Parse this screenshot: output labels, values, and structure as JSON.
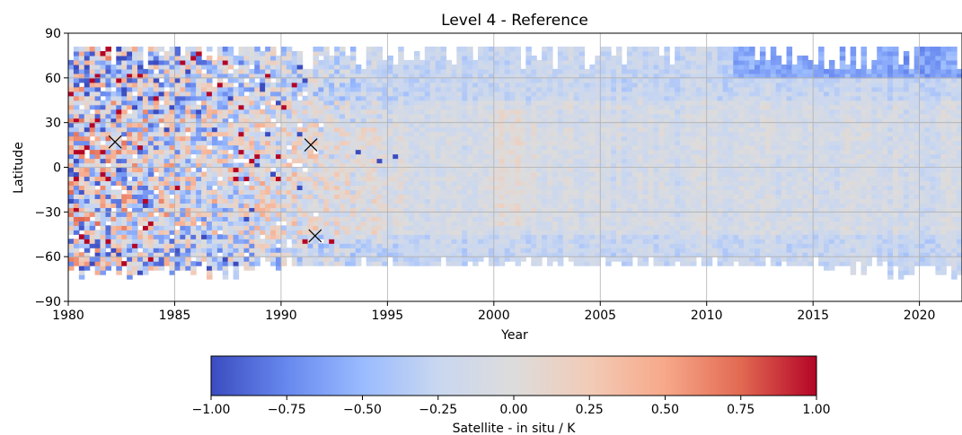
{
  "chart_data": {
    "type": "heatmap",
    "title": "Level 4 - Reference",
    "xlabel": "Year",
    "ylabel": "Latitude",
    "xlim": [
      1980,
      2022
    ],
    "ylim": [
      -90,
      90
    ],
    "xticks": [
      1980,
      1985,
      1990,
      1995,
      2000,
      2005,
      2010,
      2015,
      2020
    ],
    "xtick_labels": [
      "1980",
      "1985",
      "1990",
      "1995",
      "2000",
      "2005",
      "2010",
      "2015",
      "2020"
    ],
    "yticks": [
      -90,
      -60,
      -30,
      0,
      30,
      60,
      90
    ],
    "ytick_labels": [
      "−90",
      "−60",
      "−30",
      "0",
      "30",
      "60",
      "90"
    ],
    "grid": true,
    "colormap": "coolwarm",
    "colorbar": {
      "label": "Satellite - in situ / K",
      "vmin": -1.0,
      "vmax": 1.0,
      "ticks": [
        -1.0,
        -0.75,
        -0.5,
        -0.25,
        0.0,
        0.25,
        0.5,
        0.75,
        1.0
      ],
      "tick_labels": [
        "−1.00",
        "−0.75",
        "−0.50",
        "−0.25",
        "0.00",
        "0.25",
        "0.50",
        "0.75",
        "1.00"
      ],
      "colors": [
        "#3b4cc0",
        "#6788ee",
        "#9abbff",
        "#c9d7f0",
        "#dddcdc",
        "#f2cbb7",
        "#f7a889",
        "#e26952",
        "#b40426"
      ]
    },
    "coverage": {
      "north_edge_deg": 80,
      "south_edge_deg": -65
    },
    "highlights": [
      {
        "name": "x-marker",
        "x": 1982.2,
        "y": 17
      },
      {
        "name": "x-marker",
        "x": 1991.4,
        "y": 15
      },
      {
        "name": "x-marker",
        "x": 1991.6,
        "y": -46
      }
    ]
  }
}
